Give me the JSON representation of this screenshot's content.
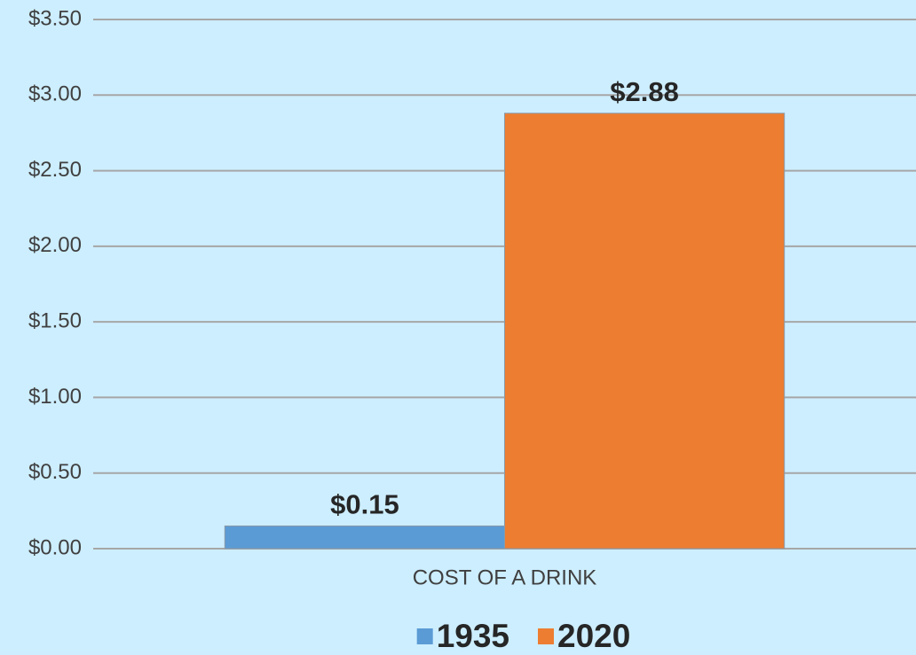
{
  "chart_data": {
    "type": "bar",
    "categories": [
      "COST OF A DRINK"
    ],
    "series": [
      {
        "name": "1935",
        "color": "#5b9bd5",
        "values": [
          0.15
        ],
        "value_labels": [
          "$0.15"
        ]
      },
      {
        "name": "2020",
        "color": "#ed7d31",
        "values": [
          2.88
        ],
        "value_labels": [
          "$2.88"
        ]
      }
    ],
    "ylim": [
      0,
      3.5
    ],
    "yticks": [
      {
        "value": 0,
        "label": "$0.00"
      },
      {
        "value": 0.5,
        "label": "$0.50"
      },
      {
        "value": 1,
        "label": "$1.00"
      },
      {
        "value": 1.5,
        "label": "$1.50"
      },
      {
        "value": 2,
        "label": "$2.00"
      },
      {
        "value": 2.5,
        "label": "$2.50"
      },
      {
        "value": 3,
        "label": "$3.00"
      },
      {
        "value": 3.5,
        "label": "$3.50"
      }
    ],
    "grid": true,
    "legend": "bottom"
  }
}
